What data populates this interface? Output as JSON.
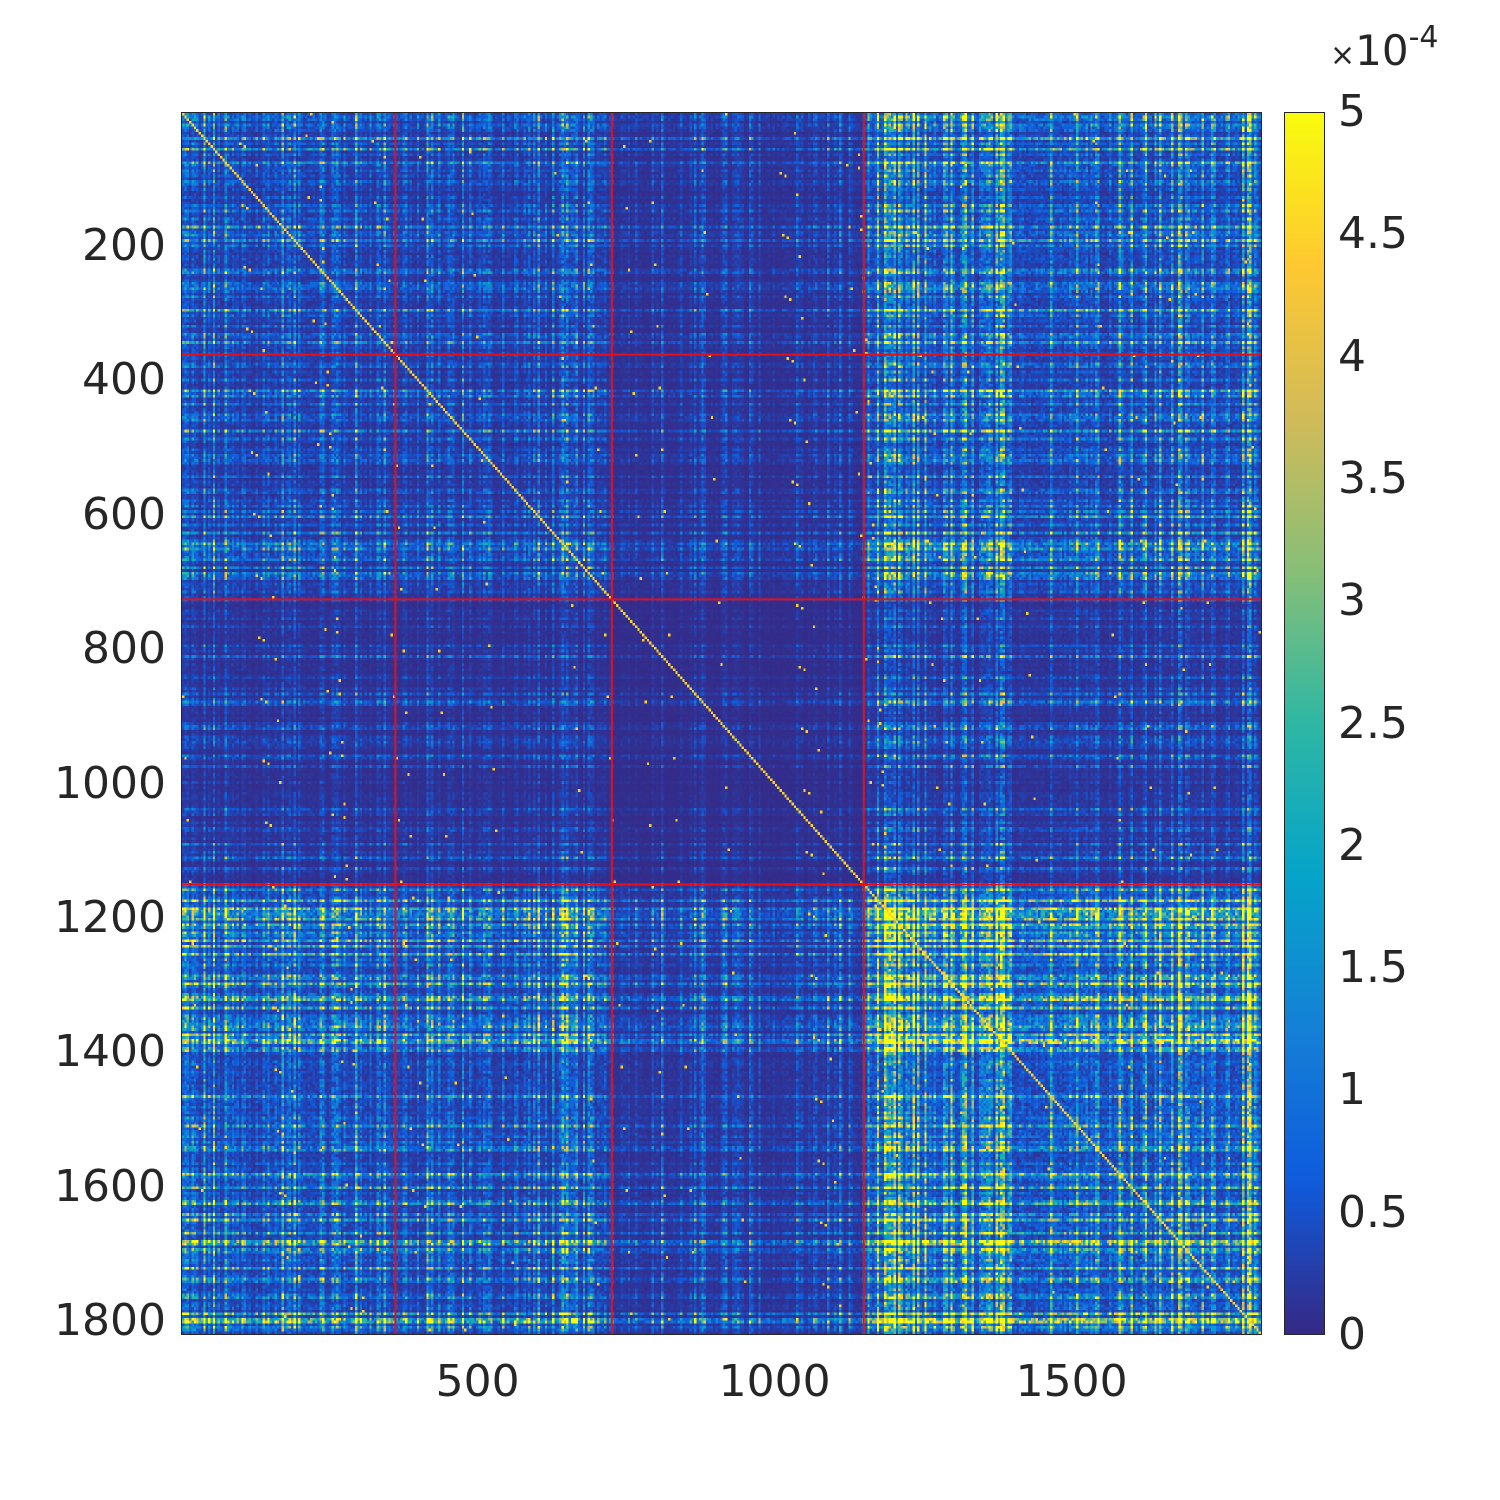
{
  "chart_data": {
    "type": "heatmap",
    "title": "",
    "xlabel": "",
    "ylabel": "",
    "matrix_size": 1820,
    "xlim": [
      0.5,
      1820.5
    ],
    "ylim": [
      0.5,
      1820.5
    ],
    "y_direction": "reverse",
    "x_ticks": [
      500,
      1000,
      1500
    ],
    "x_tick_labels": [
      "500",
      "1000",
      "1500"
    ],
    "y_ticks": [
      200,
      400,
      600,
      800,
      1000,
      1200,
      1400,
      1600,
      1800
    ],
    "y_tick_labels": [
      "200",
      "400",
      "600",
      "800",
      "1000",
      "1200",
      "1400",
      "1600",
      "1800"
    ],
    "block_boundaries": [
      360,
      725,
      1150
    ],
    "block_boundary_color": "#e3101c",
    "group_relative_strength": [
      0.55,
      0.45,
      0.22,
      0.85
    ],
    "colormap": "parula",
    "clim": [
      0,
      0.0005
    ],
    "colorbar": {
      "ticks": [
        0,
        0.5,
        1,
        1.5,
        2,
        2.5,
        3,
        3.5,
        4,
        4.5,
        5
      ],
      "tick_labels": [
        "0",
        "0.5",
        "1",
        "1.5",
        "2",
        "2.5",
        "3",
        "3.5",
        "4",
        "4.5",
        "5"
      ],
      "multiplier_base": "10",
      "multiplier_exponent": "-4",
      "multiplier_symbol": "×",
      "location": "right"
    },
    "grid": false
  }
}
